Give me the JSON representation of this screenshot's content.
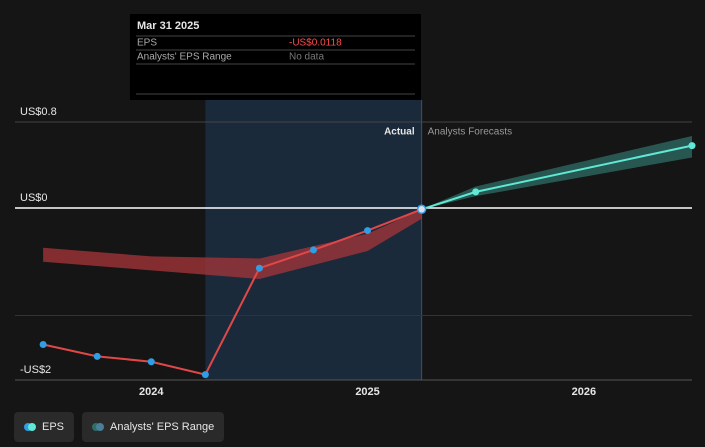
{
  "chart_data": {
    "type": "line",
    "tooltip": {
      "date": "Mar 31 2025",
      "rows": [
        [
          "EPS",
          "-US$0.0118"
        ],
        [
          "Analysts' EPS Range",
          "No data"
        ]
      ]
    },
    "annotations": {
      "actual": "Actual",
      "forecast": "Analysts Forecasts"
    },
    "xlim": [
      2023.37,
      2026.5
    ],
    "xticks": [
      2024,
      2025,
      2026
    ],
    "ylim": [
      -1.6,
      0.8
    ],
    "yticks": [
      {
        "value": 0.8,
        "label": "US$0.8"
      },
      {
        "value": 0,
        "label": "US$0"
      },
      {
        "value": -1.6,
        "label": "-US$2"
      }
    ],
    "minor_gridlines": [
      -1
    ],
    "highlight": [
      2024.25,
      2025.25
    ],
    "series": [
      {
        "name": "EPS",
        "color": "#e04848",
        "marker_color": "#2e9fe6",
        "x": [
          2023.5,
          2023.75,
          2024.0,
          2024.25,
          2024.5,
          2024.75,
          2025.0,
          2025.25
        ],
        "values": [
          -1.27,
          -1.38,
          -1.43,
          -1.55,
          -0.56,
          -0.39,
          -0.21,
          -0.0118
        ]
      }
    ],
    "forecast": {
      "color": "#5ee8d5",
      "x": [
        2025.25,
        2025.5,
        2026.5
      ],
      "values": [
        -0.0118,
        0.15,
        0.58
      ]
    },
    "range": {
      "name": "Analysts' EPS Range",
      "color": "#a8363a",
      "x": [
        2023.5,
        2024.0,
        2024.5,
        2025.0,
        2025.25
      ],
      "high": [
        -0.37,
        -0.45,
        -0.47,
        -0.24,
        -0.0118
      ],
      "low": [
        -0.5,
        -0.58,
        -0.66,
        -0.4,
        -0.1
      ]
    },
    "forecast_range": {
      "color": "#2f6e66",
      "x": [
        2025.25,
        2025.5,
        2026.5
      ],
      "high": [
        -0.0118,
        0.2,
        0.67
      ],
      "low": [
        -0.0118,
        0.11,
        0.47
      ]
    }
  }
}
